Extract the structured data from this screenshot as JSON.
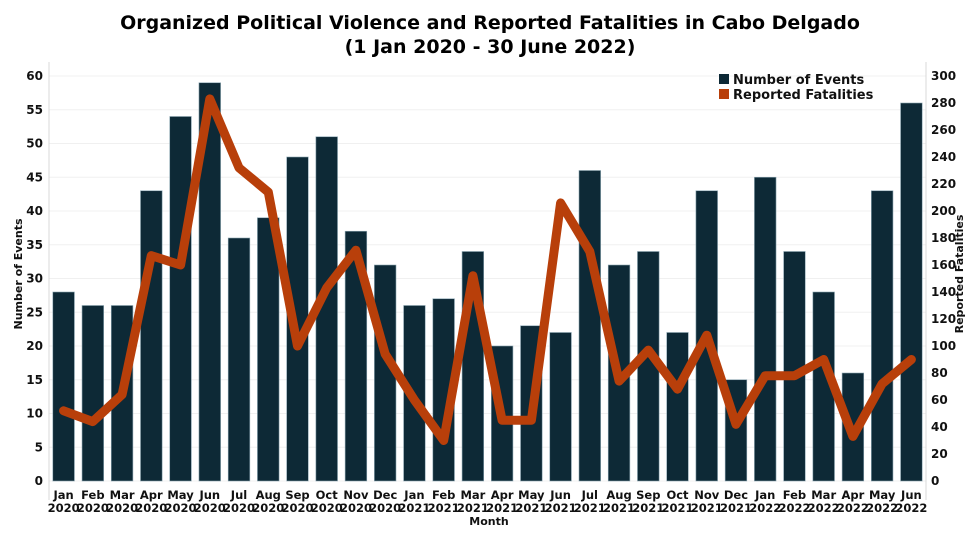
{
  "chart_data": {
    "type": "bar",
    "title": "Organized Political Violence and Reported Fatalities in Cabo Delgado",
    "subtitle": "(1 Jan 2020 - 30 June 2022)",
    "xlabel": "Month",
    "ylabel": "Number of Events",
    "y2label": "Reported Fatalities",
    "ylim": [
      0,
      60
    ],
    "y2lim": [
      0,
      300
    ],
    "yticks": [
      0,
      5,
      10,
      15,
      20,
      25,
      30,
      35,
      40,
      45,
      50,
      55,
      60
    ],
    "y2ticks": [
      0,
      20,
      40,
      60,
      80,
      100,
      120,
      140,
      160,
      180,
      200,
      220,
      240,
      260,
      280,
      300
    ],
    "grid": true,
    "legend_position": "top-right",
    "categories": [
      [
        "Jan",
        "2020"
      ],
      [
        "Feb",
        "2020"
      ],
      [
        "Mar",
        "2020"
      ],
      [
        "Apr",
        "2020"
      ],
      [
        "May",
        "2020"
      ],
      [
        "Jun",
        "2020"
      ],
      [
        "Jul",
        "2020"
      ],
      [
        "Aug",
        "2020"
      ],
      [
        "Sep",
        "2020"
      ],
      [
        "Oct",
        "2020"
      ],
      [
        "Nov",
        "2020"
      ],
      [
        "Dec",
        "2020"
      ],
      [
        "Jan",
        "2021"
      ],
      [
        "Feb",
        "2021"
      ],
      [
        "Mar",
        "2021"
      ],
      [
        "Apr",
        "2021"
      ],
      [
        "May",
        "2021"
      ],
      [
        "Jun",
        "2021"
      ],
      [
        "Jul",
        "2021"
      ],
      [
        "Aug",
        "2021"
      ],
      [
        "Sep",
        "2021"
      ],
      [
        "Oct",
        "2021"
      ],
      [
        "Nov",
        "2021"
      ],
      [
        "Dec",
        "2021"
      ],
      [
        "Jan",
        "2022"
      ],
      [
        "Feb",
        "2022"
      ],
      [
        "Mar",
        "2022"
      ],
      [
        "Apr",
        "2022"
      ],
      [
        "May",
        "2022"
      ],
      [
        "Jun",
        "2022"
      ]
    ],
    "series": [
      {
        "name": "Number of Events",
        "type": "bar",
        "axis": "left",
        "color": "#0d2936",
        "values": [
          28,
          26,
          26,
          43,
          54,
          59,
          36,
          39,
          48,
          51,
          37,
          32,
          26,
          27,
          34,
          20,
          23,
          22,
          46,
          32,
          34,
          22,
          43,
          15,
          45,
          34,
          28,
          16,
          43,
          56
        ]
      },
      {
        "name": "Reported Fatalities",
        "type": "line",
        "axis": "right",
        "color": "#b83f0a",
        "values": [
          52,
          44,
          64,
          167,
          160,
          283,
          232,
          214,
          100,
          143,
          171,
          94,
          60,
          30,
          152,
          45,
          45,
          206,
          170,
          74,
          97,
          68,
          108,
          42,
          78,
          78,
          90,
          33,
          72,
          90
        ]
      }
    ]
  }
}
